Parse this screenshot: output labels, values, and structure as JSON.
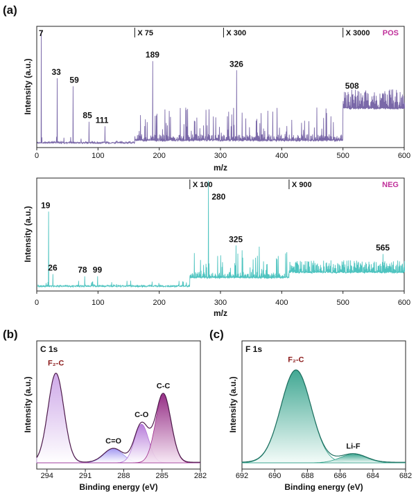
{
  "panels": {
    "a": "(a)",
    "b": "(b)",
    "c": "(c)"
  },
  "chart_data": [
    {
      "type": "line",
      "id": "pos",
      "mode_label": "POS",
      "xlabel": "m/z",
      "ylabel": "Intensity (a.u.)",
      "xlim": [
        0,
        600
      ],
      "xticks": [
        0,
        100,
        200,
        300,
        400,
        500,
        600
      ],
      "color": "#7a68a8",
      "mode_color": "#c02f9a",
      "magnifications": [
        {
          "label": "X 75",
          "from_mz": 160
        },
        {
          "label": "X 300",
          "from_mz": 305
        },
        {
          "label": "X 3000",
          "from_mz": 500
        }
      ],
      "peaks": [
        {
          "mz": 7,
          "label": "7",
          "intensity": 0.98
        },
        {
          "mz": 33,
          "label": "33",
          "intensity": 0.57
        },
        {
          "mz": 59,
          "label": "59",
          "intensity": 0.5
        },
        {
          "mz": 85,
          "label": "85",
          "intensity": 0.19
        },
        {
          "mz": 111,
          "label": "111",
          "intensity": 0.15
        },
        {
          "mz": 189,
          "label": "189",
          "intensity": 0.72
        },
        {
          "mz": 326,
          "label": "326",
          "intensity": 0.64
        },
        {
          "mz": 508,
          "label": "508",
          "intensity": 0.45
        }
      ]
    },
    {
      "type": "line",
      "id": "neg",
      "mode_label": "NEG",
      "xlabel": "m/z",
      "ylabel": "Intensity (a.u.)",
      "xlim": [
        0,
        600
      ],
      "xticks": [
        0,
        100,
        200,
        300,
        400,
        500,
        600
      ],
      "color": "#4fc4c0",
      "mode_color": "#c02f9a",
      "magnifications": [
        {
          "label": "X 100",
          "from_mz": 250
        },
        {
          "label": "X 900",
          "from_mz": 412
        }
      ],
      "peaks": [
        {
          "mz": 19,
          "label": "19",
          "intensity": 0.71
        },
        {
          "mz": 26,
          "label": "26",
          "intensity": 0.12
        },
        {
          "mz": 78,
          "label": "78",
          "intensity": 0.1
        },
        {
          "mz": 99,
          "label": "99",
          "intensity": 0.1
        },
        {
          "mz": 280,
          "label": "280",
          "intensity": 1.0
        },
        {
          "mz": 325,
          "label": "325",
          "intensity": 0.39
        },
        {
          "mz": 565,
          "label": "565",
          "intensity": 0.31
        }
      ]
    },
    {
      "type": "area",
      "id": "c1s",
      "title": "C 1s",
      "xlabel": "Binding energy (eV)",
      "ylabel": "Intensity (a.u.)",
      "xlim": [
        294.8,
        282.0
      ],
      "xticks": [
        294,
        291,
        288,
        285,
        282
      ],
      "components": [
        {
          "label": "F₂-C",
          "center": 293.3,
          "sigma": 0.62,
          "height": 0.83,
          "color": "#c9a0e6"
        },
        {
          "label": "C=O",
          "center": 288.8,
          "sigma": 0.75,
          "height": 0.13,
          "color": "#9b8ff0"
        },
        {
          "label": "C-O",
          "center": 286.6,
          "sigma": 0.55,
          "height": 0.36,
          "color": "#b070d6"
        },
        {
          "label": "C-C",
          "center": 284.9,
          "sigma": 0.6,
          "height": 0.64,
          "color": "#9c2a8a"
        }
      ]
    },
    {
      "type": "area",
      "id": "f1s",
      "title": "F 1s",
      "xlabel": "Binding energy (eV)",
      "ylabel": "Intensity (a.u.)",
      "xlim": [
        692,
        682
      ],
      "xticks": [
        692,
        690,
        688,
        686,
        684,
        682
      ],
      "components": [
        {
          "label": "F₂-C",
          "center": 688.7,
          "sigma": 0.92,
          "height": 0.86,
          "color": "#2e9f88"
        },
        {
          "label": "Li-F",
          "center": 685.2,
          "sigma": 0.8,
          "height": 0.08,
          "color": "#2e9f88"
        }
      ]
    }
  ]
}
